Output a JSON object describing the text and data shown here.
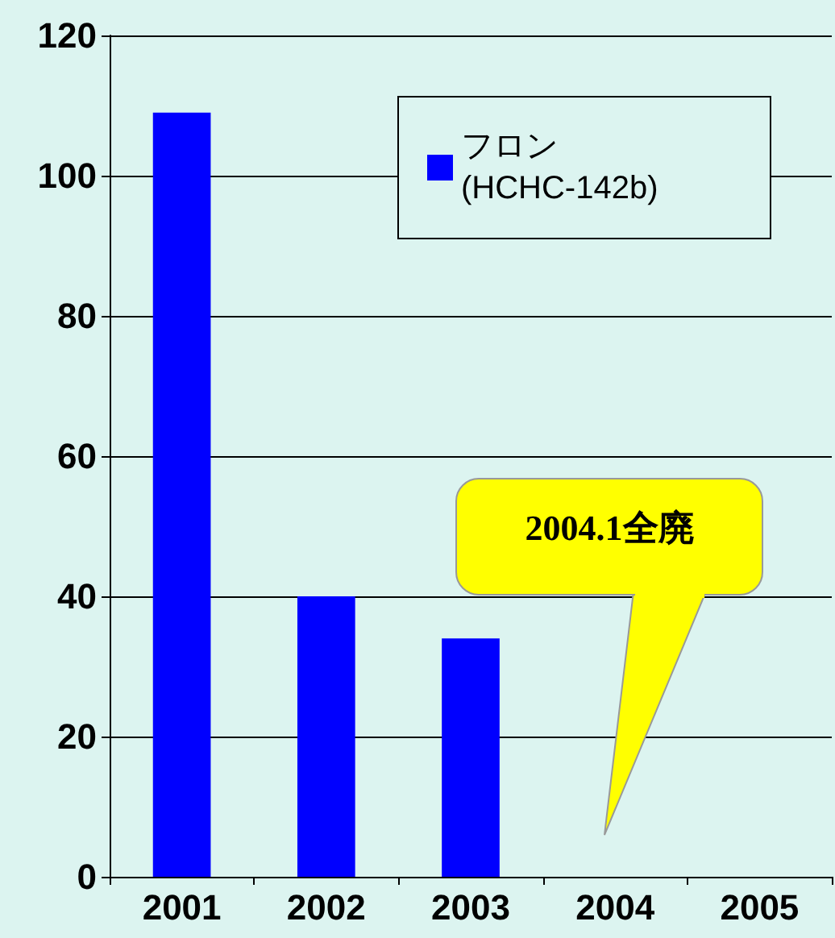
{
  "chart_data": {
    "type": "bar",
    "categories": [
      "2001",
      "2002",
      "2003",
      "2004",
      "2005"
    ],
    "series": [
      {
        "name": "フロン(HCHC-142b)",
        "color": "#0000ff",
        "values": [
          109,
          40,
          34,
          0,
          0
        ]
      }
    ],
    "ylim": [
      0,
      120
    ],
    "yticks": [
      0,
      20,
      40,
      60,
      80,
      100,
      120
    ],
    "grid": "y",
    "legend": "top right",
    "annotations": [
      "2004.1全廃"
    ]
  }
}
